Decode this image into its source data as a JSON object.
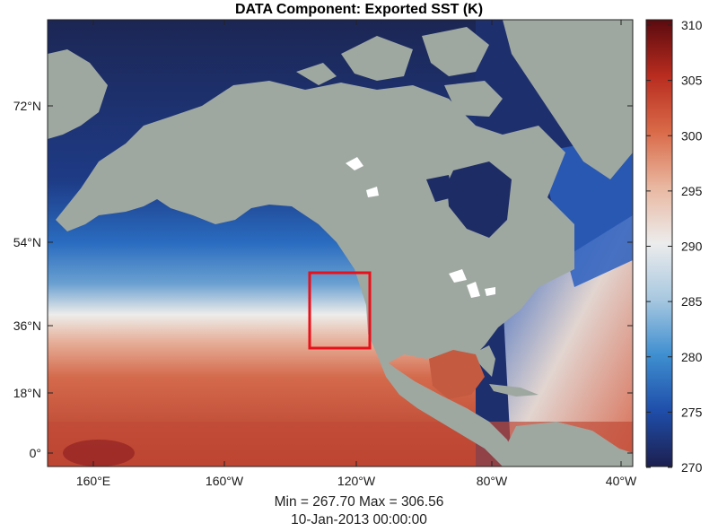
{
  "title": "DATA Component: Exported SST (K)",
  "stats": "Min = 267.70  Max = 306.56",
  "date": "10-Jan-2013 00:00:00",
  "map": {
    "lat_ticks": [
      "72°N",
      "54°N",
      "36°N",
      "18°N",
      "0°"
    ],
    "lon_ticks": [
      "160°E",
      "160°W",
      "120°W",
      "80°W",
      "40°W"
    ],
    "land_color": "#9ea8a0",
    "lake_color": "#ffffff",
    "highlight_box_color": "#e8101a"
  },
  "colorbar": {
    "labels": [
      "310",
      "305",
      "300",
      "295",
      "290",
      "285",
      "280",
      "275",
      "270"
    ],
    "min": 270,
    "max": 310,
    "colors": [
      "#1c1f4f",
      "#1f4eaa",
      "#3f8fd0",
      "#a8c8e0",
      "#ececec",
      "#e9b7a0",
      "#d96a48",
      "#b82c1f",
      "#5a0a0f"
    ]
  }
}
